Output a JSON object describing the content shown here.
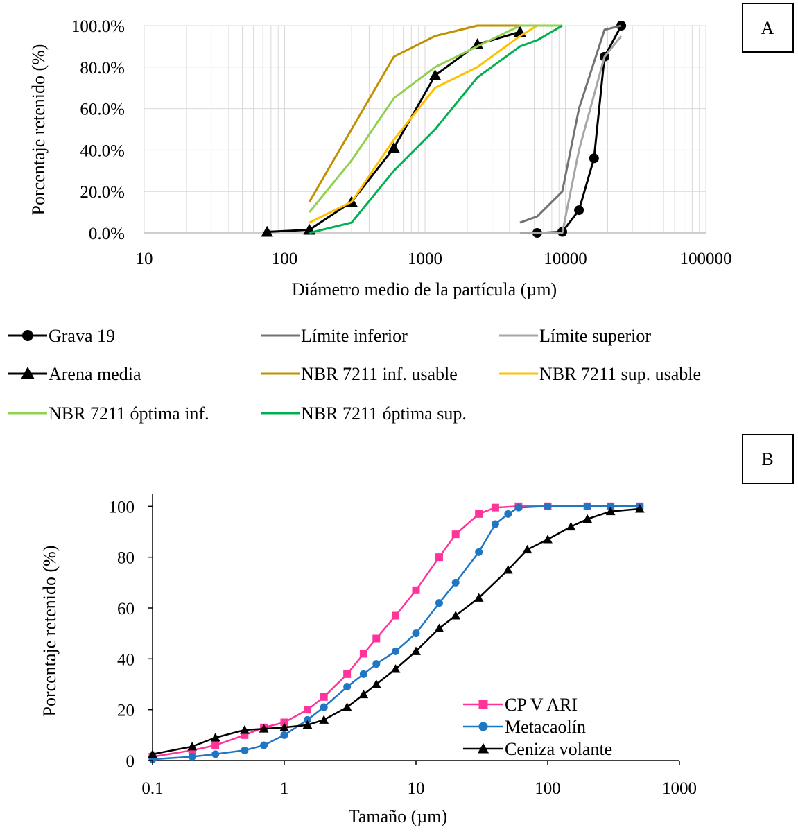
{
  "chart_data": [
    {
      "panel": "A",
      "type": "line",
      "x_scale": "log",
      "xlim": [
        10,
        100000
      ],
      "ylim": [
        0,
        100
      ],
      "xlabel": "Diámetro medio de la partícula (µm)",
      "ylabel": "Porcentaje retenido (%)",
      "x_ticks": [
        10,
        100,
        1000,
        10000,
        100000
      ],
      "x_tick_labels": [
        "10",
        "100",
        "1000",
        "10000",
        "100000"
      ],
      "y_ticks": [
        0,
        20,
        40,
        60,
        80,
        100
      ],
      "y_tick_labels": [
        "0.0%",
        "20.0%",
        "40.0%",
        "60.0%",
        "80.0%",
        "100.0%"
      ],
      "grid": "vertical log minor + horizontal major",
      "legend_position": "bottom",
      "series": [
        {
          "name": "Grava 19",
          "color": "#000000",
          "marker": "circle",
          "x": [
            6300,
            9500,
            12500,
            16000,
            19000,
            25000
          ],
          "y": [
            0,
            0.5,
            11,
            36,
            85,
            100
          ]
        },
        {
          "name": "Límite inferior",
          "color": "#767171",
          "marker": "none",
          "x": [
            4750,
            6300,
            9500,
            12500,
            19000,
            25000
          ],
          "y": [
            5,
            8,
            20,
            60,
            98,
            100
          ]
        },
        {
          "name": "Límite superior",
          "color": "#a6a6a6",
          "marker": "none",
          "x": [
            4750,
            9500,
            12500,
            19000,
            25000
          ],
          "y": [
            0,
            0,
            40,
            85,
            95
          ]
        },
        {
          "name": "Arena media",
          "color": "#000000",
          "marker": "triangle",
          "x": [
            75,
            150,
            300,
            600,
            1180,
            2360,
            4750
          ],
          "y": [
            0.5,
            1.5,
            15,
            41,
            76,
            91,
            97
          ]
        },
        {
          "name": "NBR 7211 inf. usable",
          "color": "#bf9000",
          "marker": "none",
          "x": [
            150,
            300,
            600,
            1180,
            2360,
            4750
          ],
          "y": [
            15,
            50,
            85,
            95,
            100,
            100
          ]
        },
        {
          "name": "NBR 7211 sup. usable",
          "color": "#ffc000",
          "marker": "none",
          "x": [
            150,
            300,
            600,
            1180,
            2360,
            4750,
            6300
          ],
          "y": [
            5,
            15,
            45,
            70,
            80,
            95,
            100
          ]
        },
        {
          "name": "NBR 7211 óptima inf.",
          "color": "#92d050",
          "marker": "none",
          "x": [
            150,
            300,
            600,
            1180,
            2360,
            4750,
            9500
          ],
          "y": [
            10,
            35,
            65,
            80,
            90,
            100,
            100
          ]
        },
        {
          "name": "NBR 7211 óptima sup.",
          "color": "#00b050",
          "marker": "none",
          "x": [
            150,
            300,
            600,
            1180,
            2360,
            4750,
            6300,
            9500
          ],
          "y": [
            0,
            5,
            30,
            50,
            75,
            90,
            93,
            100
          ]
        }
      ]
    },
    {
      "panel": "B",
      "type": "line",
      "x_scale": "log",
      "xlim": [
        0.1,
        1000
      ],
      "ylim": [
        0,
        105
      ],
      "xlabel": "Tamaño (µm)",
      "ylabel": "Porcentaje retenido (%)",
      "x_ticks": [
        0.1,
        1,
        10,
        100,
        1000
      ],
      "x_tick_labels": [
        "0.1",
        "1",
        "10",
        "100",
        "1000"
      ],
      "y_ticks": [
        0,
        20,
        40,
        60,
        80,
        100
      ],
      "y_tick_labels": [
        "0",
        "20",
        "40",
        "60",
        "80",
        "100"
      ],
      "grid": "none",
      "legend_position": "bottom-right",
      "series": [
        {
          "name": "CP V ARI",
          "color": "#ff3399",
          "marker": "square",
          "x": [
            0.1,
            0.2,
            0.3,
            0.5,
            0.7,
            1,
            1.5,
            2,
            3,
            4,
            5,
            7,
            10,
            15,
            20,
            30,
            40,
            60,
            100,
            200,
            300,
            500
          ],
          "y": [
            1.5,
            4,
            6,
            10,
            13,
            15,
            20,
            25,
            34,
            42,
            48,
            57,
            67,
            80,
            89,
            97,
            99.5,
            100,
            100,
            100,
            100,
            100
          ]
        },
        {
          "name": "Metacaolín",
          "color": "#1f77c4",
          "marker": "circle",
          "x": [
            0.1,
            0.2,
            0.3,
            0.5,
            0.7,
            1,
            1.5,
            2,
            3,
            4,
            5,
            7,
            10,
            15,
            20,
            30,
            40,
            50,
            60,
            100,
            200,
            300,
            500
          ],
          "y": [
            0.5,
            1.5,
            2.5,
            4,
            6,
            10,
            16,
            21,
            29,
            34,
            38,
            43,
            50,
            62,
            70,
            82,
            93,
            97,
            99.5,
            100,
            100,
            100,
            100
          ]
        },
        {
          "name": "Ceniza volante",
          "color": "#000000",
          "marker": "triangle",
          "x": [
            0.1,
            0.2,
            0.3,
            0.5,
            0.7,
            1,
            1.5,
            2,
            3,
            4,
            5,
            7,
            10,
            15,
            20,
            30,
            50,
            70,
            100,
            150,
            200,
            300,
            500
          ],
          "y": [
            2.5,
            5.5,
            9,
            12,
            12.5,
            13,
            14,
            16,
            21,
            26,
            30,
            36,
            43,
            52,
            57,
            64,
            75,
            83,
            87,
            92,
            95,
            98,
            99
          ]
        }
      ]
    }
  ],
  "panel_labels": {
    "a": "A",
    "b": "B"
  }
}
